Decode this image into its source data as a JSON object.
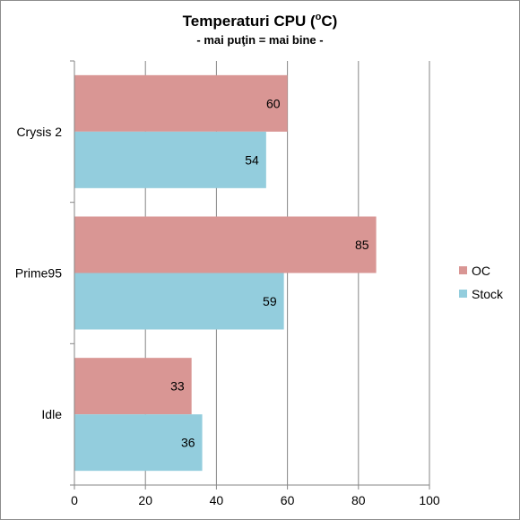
{
  "chart_data": {
    "type": "bar",
    "orientation": "horizontal",
    "title": "Temperaturi CPU (",
    "title_sup": "o",
    "title_end": "C)",
    "subtitle": "- mai puţin = mai bine -",
    "categories": [
      "Crysis 2",
      "Prime95",
      "Idle"
    ],
    "series": [
      {
        "name": "OC",
        "values": [
          60,
          85,
          33
        ],
        "color": "#d99694"
      },
      {
        "name": "Stock",
        "values": [
          54,
          59,
          36
        ],
        "color": "#93cddd"
      }
    ],
    "xlim": [
      0,
      100
    ],
    "xticks": [
      0,
      20,
      40,
      60,
      80,
      100
    ],
    "grid": true,
    "legend_position": "right",
    "data_labels": true
  }
}
